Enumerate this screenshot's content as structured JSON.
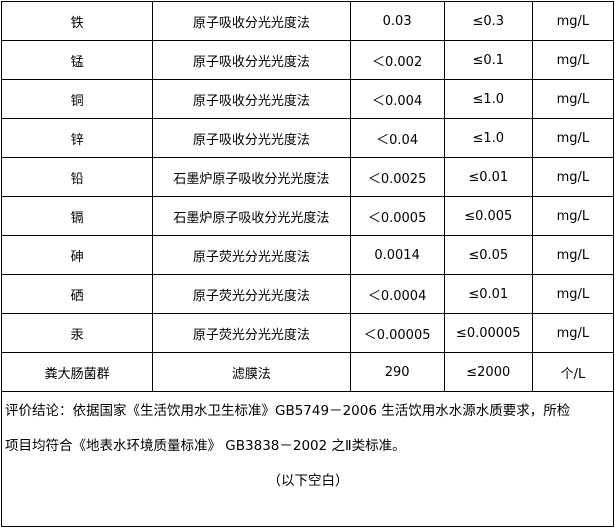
{
  "rows": [
    {
      "item": "铁",
      "method": "原子吸收分光光度法",
      "result": "0.03",
      "limit": "≤0.3",
      "unit": "mg/L"
    },
    {
      "item": "锰",
      "method": "原子吸收分光光度法",
      "result": "＜0.002",
      "limit": "≤0.1",
      "unit": "mg/L"
    },
    {
      "item": "铜",
      "method": "原子吸收分光光度法",
      "result": "＜0.004",
      "limit": "≤1.0",
      "unit": "mg/L"
    },
    {
      "item": "锌",
      "method": "原子吸收分光光度法",
      "result": "＜0.04",
      "limit": "≤1.0",
      "unit": "mg/L"
    },
    {
      "item": "铅",
      "method": "石墨炉原子吸收分光光度法",
      "result": "＜0.0025",
      "limit": "≤0.01",
      "unit": "mg/L"
    },
    {
      "item": "镉",
      "method": "石墨炉原子吸收分光光度法",
      "result": "＜0.0005",
      "limit": "≤0.005",
      "unit": "mg/L"
    },
    {
      "item": "砷",
      "method": "原子荧光分光光度法",
      "result": "0.0014",
      "limit": "≤0.05",
      "unit": "mg/L"
    },
    {
      "item": "硒",
      "method": "原子荧光分光光度法",
      "result": "＜0.0004",
      "limit": "≤0.01",
      "unit": "mg/L"
    },
    {
      "item": "汞",
      "method": "原子荧光分光光度法",
      "result": "＜0.00005",
      "limit": "≤0.00005",
      "unit": "mg/L"
    },
    {
      "item": "粪大肠菌群",
      "method": "滤膜法",
      "result": "290",
      "limit": "≤2000",
      "unit": "个/L"
    }
  ],
  "conclusion": {
    "line1": "评价结论：依据国家《生活饮用水卫生标准》GB5749－2006 生活饮用水水源水质要求，所检",
    "line2": "项目均符合《地表水环境质量标准》 GB3838－2002 之Ⅱ类标准。",
    "blank_note": "（以下空白）"
  }
}
